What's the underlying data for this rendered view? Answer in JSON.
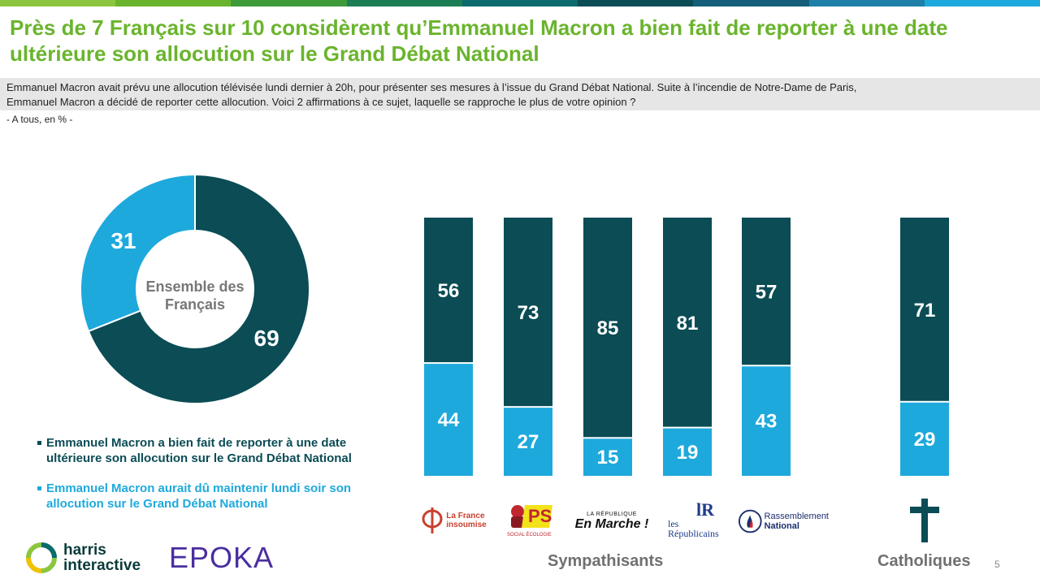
{
  "header": {
    "title_line1": "Près de 7 Français sur 10 considèrent qu’Emmanuel Macron a bien fait de reporter à une date",
    "title_line2": "ultérieure son allocution sur le Grand Débat National"
  },
  "question": {
    "line1": "Emmanuel Macron avait prévu une allocution télévisée lundi dernier à 20h, pour présenter ses mesures à l’issue du Grand Débat National. Suite à l’incendie de Notre-Dame de Paris,",
    "line2": "Emmanuel Macron a décidé de reporter cette allocution. Voici 2 affirmations à ce sujet, laquelle se rapproche le plus de votre opinion ?"
  },
  "base": "- A tous, en % -",
  "colors": {
    "dark": "#0b4c55",
    "light": "#1ea9dc",
    "title_green": "#6ab42d"
  },
  "chart_data": [
    {
      "type": "pie",
      "center_label_line1": "Ensemble des",
      "center_label_line2": "Français",
      "slices": [
        {
          "series": "Emmanuel Macron a bien fait de reporter à une date ultérieure son allocution sur le Grand Débat National",
          "value": 69,
          "color": "#0b4c55"
        },
        {
          "series": "Emmanuel Macron aurait dû maintenir lundi soir son allocution sur le Grand Débat National",
          "value": 31,
          "color": "#1ea9dc"
        }
      ]
    },
    {
      "type": "bar",
      "stacked": true,
      "groups": [
        {
          "label": "Sympathisants",
          "categories": [
            "La France insoumise",
            "PS",
            "La République En Marche !",
            "Les Républicains",
            "Rassemblement National"
          ]
        },
        {
          "label": "Catholiques",
          "categories": [
            "Catholiques"
          ]
        }
      ],
      "categories": [
        "La France insoumise",
        "PS",
        "La République En Marche !",
        "Les Républicains",
        "Rassemblement National",
        "Catholiques"
      ],
      "series": [
        {
          "name": "Emmanuel Macron a bien fait de reporter à une date ultérieure son allocution sur le Grand Débat National",
          "values": [
            56,
            73,
            85,
            81,
            57,
            71
          ],
          "color": "#0b4c55"
        },
        {
          "name": "Emmanuel Macron aurait dû maintenir lundi soir son allocution sur le Grand Débat National",
          "values": [
            44,
            27,
            15,
            19,
            43,
            29
          ],
          "color": "#1ea9dc"
        }
      ],
      "ylim": [
        0,
        100
      ]
    }
  ],
  "legend": {
    "item1_line1": "Emmanuel Macron a bien fait de reporter à une date",
    "item1_line2": "ultérieure son allocution sur le Grand Débat National",
    "item2_line1": "Emmanuel Macron aurait dû maintenir lundi soir son",
    "item2_line2": "allocution sur le Grand Débat National"
  },
  "logos": {
    "lfi_line1": "La France",
    "lfi_line2": "insoumise",
    "ps": "PS",
    "ps_sub": "SOCIAL ÉCOLOGIE",
    "lrem_line1": "LA RÉPUBLIQUE",
    "lrem_line2": "En Marche !",
    "lr_mark": "lR",
    "lr_line1": "les",
    "lr_line2": "Républicains",
    "rn_line1": "Rassemblement",
    "rn_line2": "National",
    "cross_icon": "latin-cross-icon"
  },
  "group_labels": {
    "sympathisants": "Sympathisants",
    "catholiques": "Catholiques"
  },
  "footer": {
    "harris_line1": "harris",
    "harris_line2": "interactive",
    "epoka": "EPOKA",
    "page_number": "5"
  }
}
